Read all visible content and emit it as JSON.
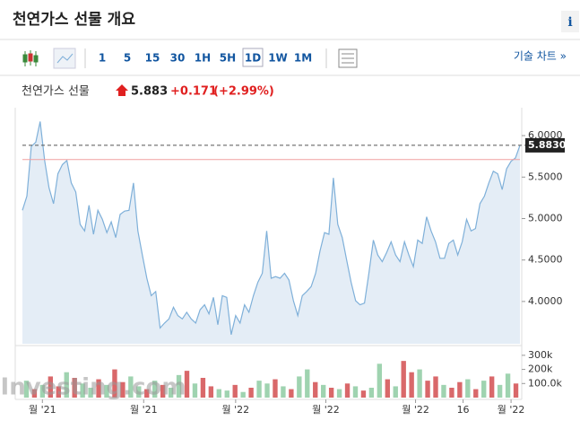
{
  "header": {
    "title": "천연가스 선물 개요",
    "info": "i"
  },
  "toolbar": {
    "intervals": [
      "1",
      "5",
      "15",
      "30",
      "1H",
      "5H",
      "1D",
      "1W",
      "1M"
    ],
    "active": 6,
    "tech_chart": "기술 차트 »"
  },
  "quote": {
    "name": "천연가스 선물",
    "price": "5.883",
    "change": "+0.171",
    "change_pct": "(+2.99%)"
  },
  "watermark": "Investing.com",
  "chart_data": [
    {
      "type": "area",
      "color": "#7fb0d9",
      "fill": "#e4edf6",
      "values": [
        5.1,
        5.27,
        5.87,
        5.92,
        6.17,
        5.7,
        5.37,
        5.18,
        5.54,
        5.65,
        5.7,
        5.43,
        5.32,
        4.93,
        4.85,
        5.16,
        4.81,
        5.1,
        4.99,
        4.83,
        4.96,
        4.77,
        5.05,
        5.09,
        5.1,
        5.43,
        4.85,
        4.56,
        4.28,
        4.07,
        4.12,
        3.68,
        3.74,
        3.79,
        3.93,
        3.83,
        3.79,
        3.87,
        3.79,
        3.74,
        3.9,
        3.96,
        3.85,
        4.05,
        3.72,
        4.07,
        4.05,
        3.6,
        3.83,
        3.74,
        3.96,
        3.87,
        4.07,
        4.23,
        4.34,
        4.85,
        4.28,
        4.3,
        4.28,
        4.34,
        4.26,
        4.01,
        3.83,
        4.07,
        4.12,
        4.18,
        4.34,
        4.61,
        4.83,
        4.81,
        5.49,
        4.93,
        4.77,
        4.5,
        4.23,
        4.01,
        3.96,
        3.98,
        4.34,
        4.74,
        4.56,
        4.48,
        4.59,
        4.72,
        4.56,
        4.48,
        4.72,
        4.56,
        4.42,
        4.74,
        4.7,
        5.02,
        4.85,
        4.72,
        4.52,
        4.52,
        4.7,
        4.74,
        4.56,
        4.72,
        4.99,
        4.85,
        4.88,
        5.18,
        5.27,
        5.43,
        5.57,
        5.54,
        5.35,
        5.6,
        5.69,
        5.73,
        5.883
      ],
      "xlim": [
        0,
        112
      ],
      "xticks": [
        {
          "value": 4.5,
          "label": "월 '21"
        },
        {
          "value": 27.3,
          "label": "월 '21"
        },
        {
          "value": 48,
          "label": "월 '22"
        },
        {
          "value": 68.3,
          "label": "월 '22"
        },
        {
          "value": 88.5,
          "label": "월 '22"
        },
        {
          "value": 99.2,
          "label": "16"
        },
        {
          "value": 110,
          "label": "월 '22"
        }
      ],
      "ylim": [
        3.49,
        6.25
      ],
      "yticks": [
        {
          "value": 4,
          "label": "4.0000"
        },
        {
          "value": 4.5,
          "label": "4.5000"
        },
        {
          "value": 5,
          "label": "5.0000"
        },
        {
          "value": 5.5,
          "label": "5.5000"
        },
        {
          "value": 6,
          "label": "6.0000"
        }
      ],
      "last": {
        "value": 5.883,
        "label": "5.8830"
      },
      "previous_close": 5.712
    },
    {
      "type": "bar",
      "values": [
        120000,
        60000,
        90000,
        150000,
        80000,
        180000,
        140000,
        100000,
        70000,
        130000,
        90000,
        200000,
        110000,
        150000,
        80000,
        60000,
        120000,
        90000,
        70000,
        160000,
        190000,
        100000,
        140000,
        80000,
        60000,
        50000,
        90000,
        40000,
        70000,
        120000,
        100000,
        130000,
        80000,
        60000,
        150000,
        200000,
        110000,
        90000,
        70000,
        60000,
        100000,
        80000,
        50000,
        70000,
        240000,
        130000,
        80000,
        260000,
        180000,
        200000,
        120000,
        150000,
        90000,
        70000,
        110000,
        130000,
        60000,
        120000,
        150000,
        90000,
        170000,
        100000
      ],
      "colors": [
        "#9fd3b0",
        "#d9686a",
        "#9fd3b0",
        "#d9686a",
        "#d9686a",
        "#9fd3b0",
        "#d9686a",
        "#9fd3b0",
        "#9fd3b0",
        "#d9686a",
        "#9fd3b0",
        "#d9686a",
        "#d9686a",
        "#9fd3b0",
        "#9fd3b0",
        "#d9686a",
        "#9fd3b0",
        "#d9686a",
        "#9fd3b0",
        "#9fd3b0",
        "#d9686a",
        "#9fd3b0",
        "#d9686a",
        "#d9686a",
        "#9fd3b0",
        "#9fd3b0",
        "#d9686a",
        "#9fd3b0",
        "#d9686a",
        "#9fd3b0",
        "#9fd3b0",
        "#d9686a",
        "#9fd3b0",
        "#d9686a",
        "#9fd3b0",
        "#9fd3b0",
        "#d9686a",
        "#9fd3b0",
        "#d9686a",
        "#9fd3b0",
        "#d9686a",
        "#9fd3b0",
        "#d9686a",
        "#9fd3b0",
        "#9fd3b0",
        "#d9686a",
        "#9fd3b0",
        "#d9686a",
        "#d9686a",
        "#9fd3b0",
        "#d9686a",
        "#d9686a",
        "#9fd3b0",
        "#d9686a",
        "#d9686a",
        "#9fd3b0",
        "#d9686a",
        "#9fd3b0",
        "#d9686a",
        "#9fd3b0",
        "#9fd3b0",
        "#d9686a"
      ],
      "ylim": [
        0,
        350000
      ],
      "yticks": [
        {
          "value": 100000,
          "label": "100.0k"
        },
        {
          "value": 200000,
          "label": "200k"
        },
        {
          "value": 300000,
          "label": "300k"
        }
      ]
    }
  ]
}
